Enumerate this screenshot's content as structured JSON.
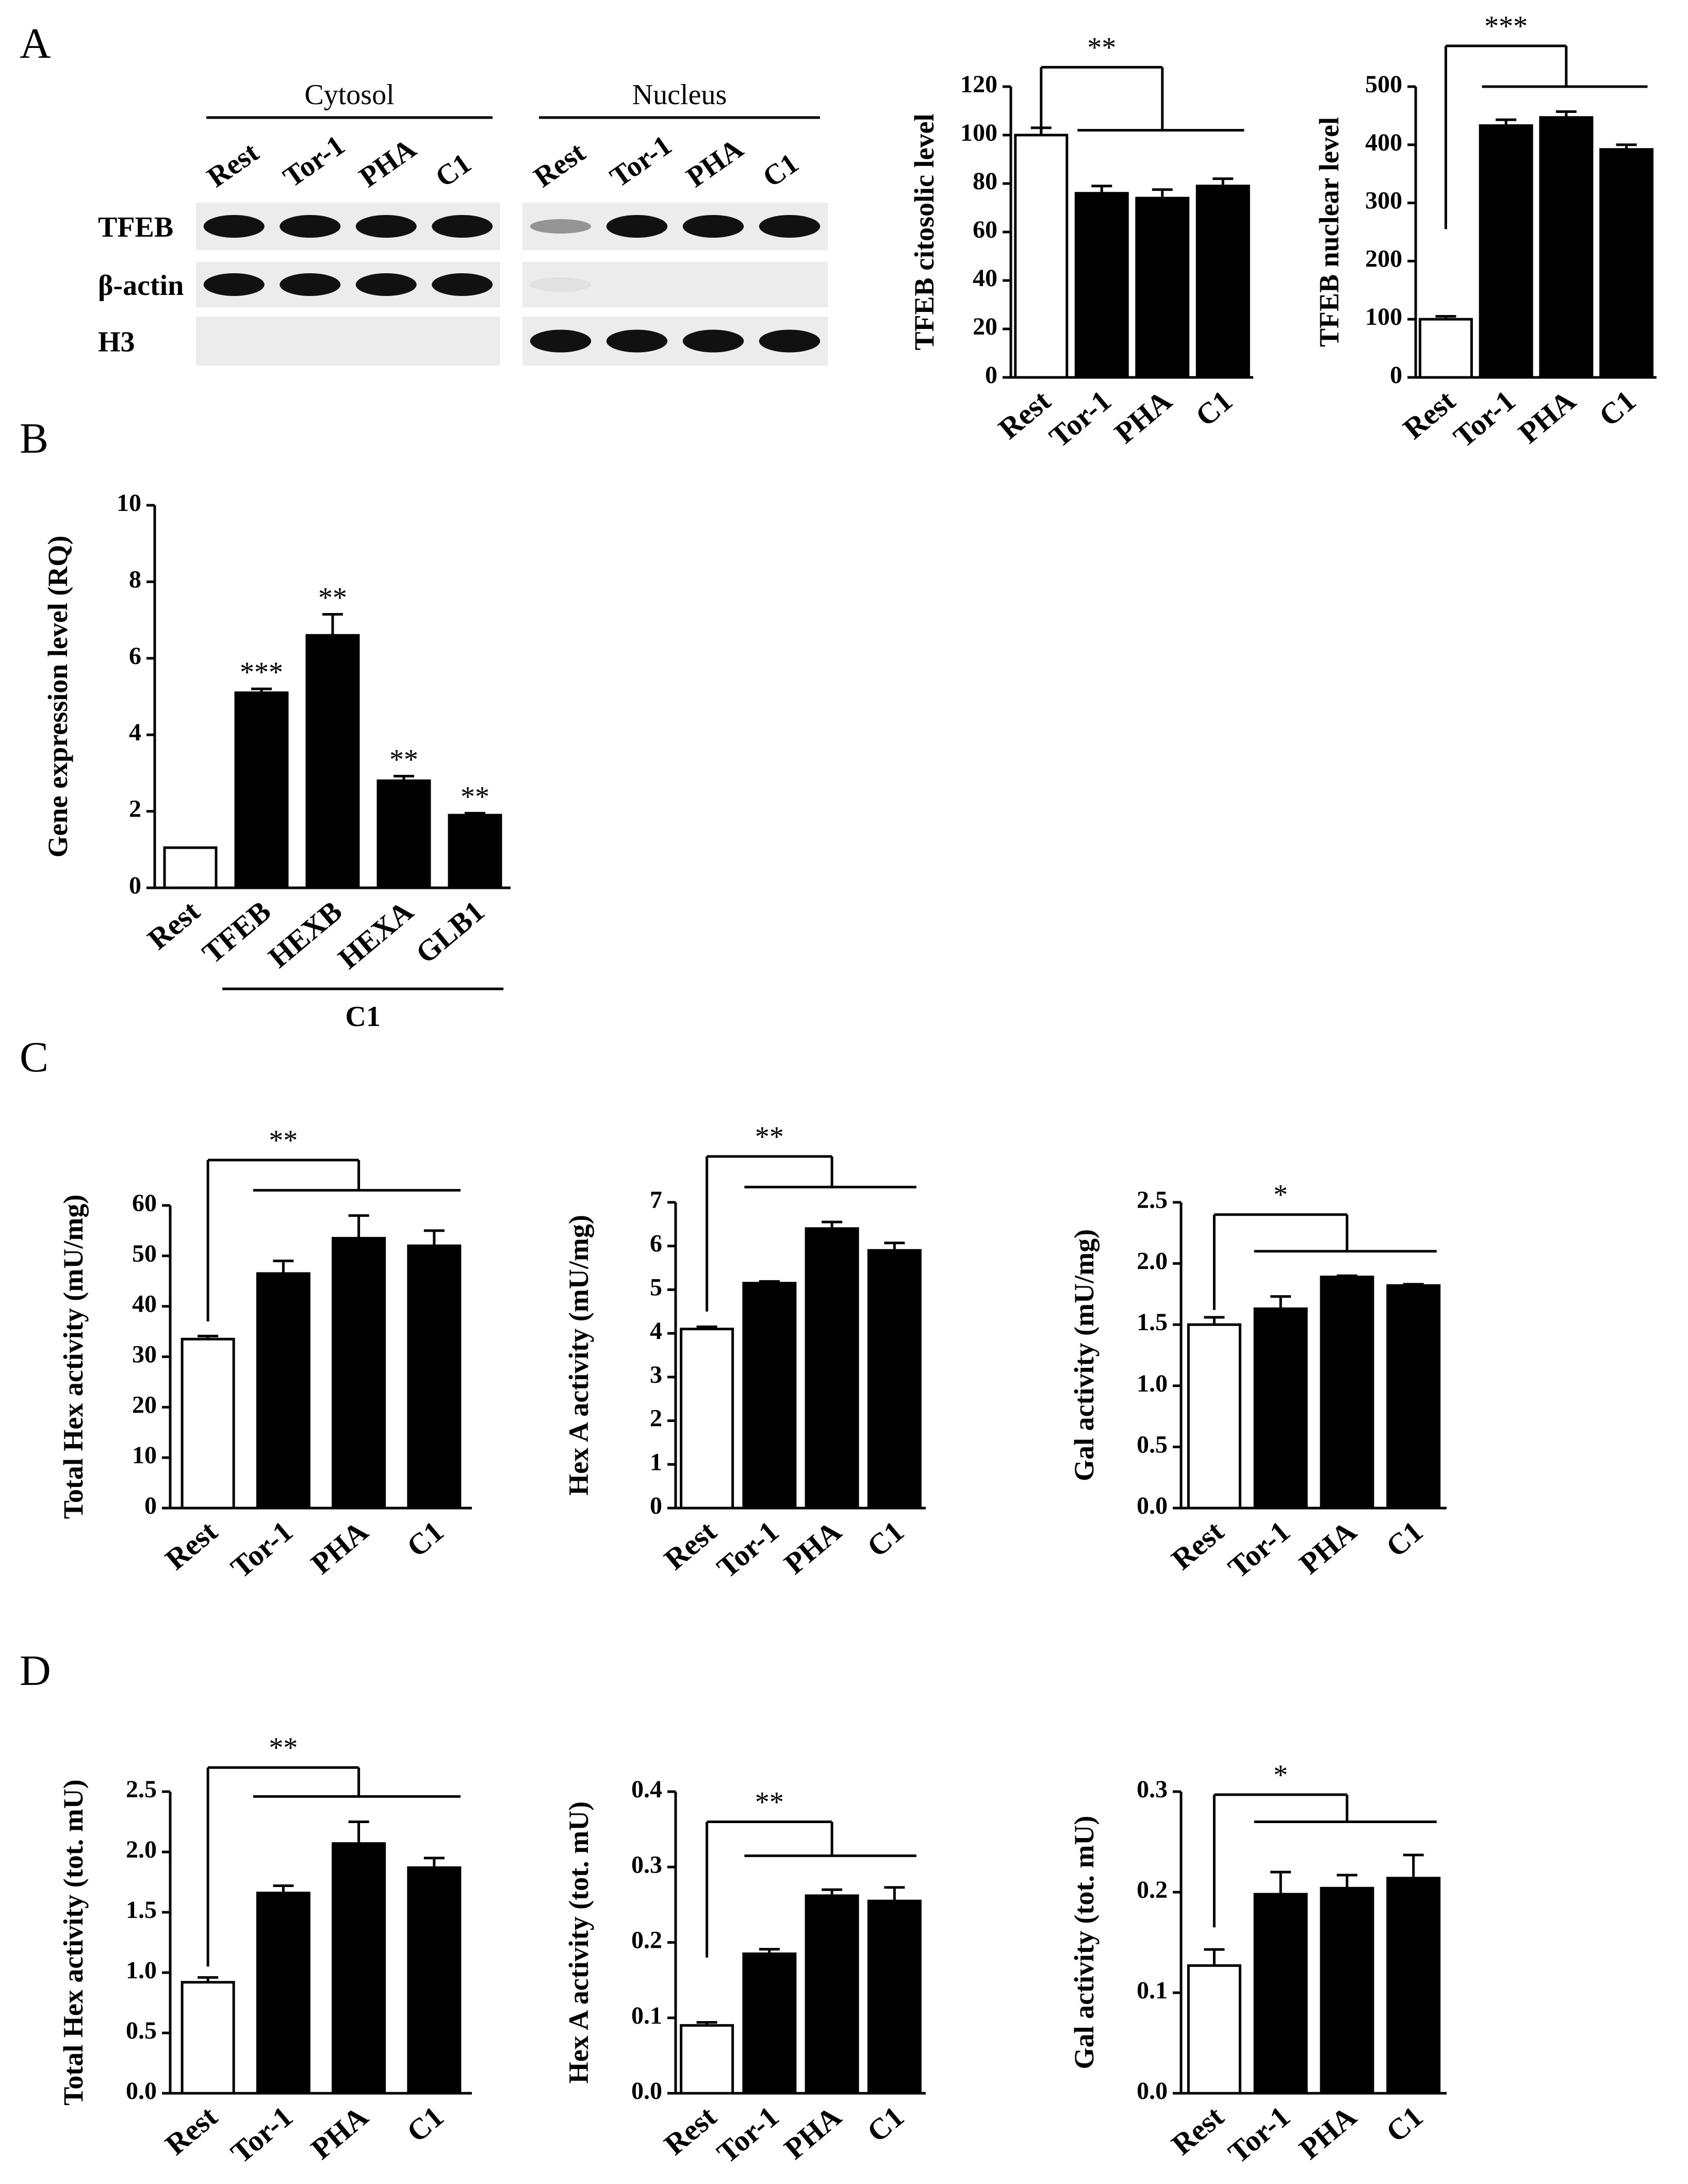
{
  "figure": {
    "panel_letters": [
      "A",
      "B",
      "C",
      "D"
    ]
  },
  "western_blot": {
    "group_labels": [
      "Cytosol",
      "Nucleus"
    ],
    "lane_labels": [
      "Rest",
      "Tor-1",
      "PHA",
      "C1"
    ],
    "row_labels": [
      "TFEB",
      "β-actin",
      "H3"
    ],
    "bands": {
      "cytosol": {
        "TFEB": [
          1,
          1,
          1,
          1
        ],
        "β-actin": [
          1,
          1,
          1,
          1
        ],
        "H3": [
          0,
          0,
          0,
          0
        ]
      },
      "nucleus": {
        "TFEB": [
          0.4,
          1,
          1,
          1
        ],
        "β-actin": [
          0.05,
          0,
          0,
          0
        ],
        "H3": [
          1,
          1,
          1,
          1
        ]
      }
    }
  },
  "chart_data": [
    {
      "id": "A1",
      "type": "bar",
      "categories": [
        "Rest",
        "Tor-1",
        "PHA",
        "C1"
      ],
      "values": [
        100,
        76,
        74,
        79
      ],
      "errors": [
        3,
        3,
        3.5,
        3
      ],
      "fills": [
        "#ffffff",
        "#000000",
        "#000000",
        "#000000"
      ],
      "ylabel": "TFEB citosolic level",
      "ylim": [
        0,
        120
      ],
      "yticks": [
        0,
        20,
        40,
        60,
        80,
        100,
        120
      ],
      "ytick_labels": [
        "0",
        "20",
        "40",
        "60",
        "80",
        "100",
        "120"
      ],
      "significance": {
        "label": "**",
        "ref": 100,
        "top": 128,
        "bar": 102
      }
    },
    {
      "id": "A2",
      "type": "bar",
      "categories": [
        "Rest",
        "Tor-1",
        "PHA",
        "C1"
      ],
      "values": [
        100,
        433,
        447,
        392
      ],
      "errors": [
        5,
        10,
        10,
        8
      ],
      "fills": [
        "#ffffff",
        "#000000",
        "#000000",
        "#000000"
      ],
      "ylabel": "TFEB nuclear level",
      "ylim": [
        0,
        500
      ],
      "yticks": [
        0,
        100,
        200,
        300,
        400,
        500
      ],
      "ytick_labels": [
        "0",
        "100",
        "200",
        "300",
        "400",
        "500"
      ],
      "significance": {
        "label": "***",
        "ref": 255,
        "top": 570,
        "bar": 500
      }
    },
    {
      "id": "B",
      "type": "bar",
      "categories": [
        "Rest",
        "TFEB",
        "HEXB",
        "HEXA",
        "GLB1"
      ],
      "values": [
        1.05,
        5.1,
        6.6,
        2.8,
        1.9
      ],
      "errors": [
        0,
        0.1,
        0.55,
        0.12,
        0.05
      ],
      "fills": [
        "#ffffff",
        "#000000",
        "#000000",
        "#000000",
        "#000000"
      ],
      "bar_stars": [
        "",
        "***",
        "**",
        "**",
        "**"
      ],
      "ylabel": "Gene expression level (RQ)",
      "ylim": [
        0,
        10
      ],
      "yticks": [
        0,
        2,
        4,
        6,
        8,
        10
      ],
      "ytick_labels": [
        "0",
        "2",
        "4",
        "6",
        "8",
        "10"
      ],
      "group_label": "C1"
    },
    {
      "id": "C1",
      "type": "bar",
      "categories": [
        "Rest",
        "Tor-1",
        "PHA",
        "C1"
      ],
      "values": [
        33.5,
        46.5,
        53.5,
        52
      ],
      "errors": [
        0.6,
        2.5,
        4.5,
        3
      ],
      "fills": [
        "#ffffff",
        "#000000",
        "#000000",
        "#000000"
      ],
      "ylabel": "Total Hex activity (mU/mg)",
      "ylim": [
        0,
        60
      ],
      "yticks": [
        0,
        10,
        20,
        30,
        40,
        50,
        60
      ],
      "ytick_labels": [
        "0",
        "10",
        "20",
        "30",
        "40",
        "50",
        "60"
      ],
      "significance": {
        "label": "**",
        "ref": 37,
        "top": 69,
        "bar": 63
      }
    },
    {
      "id": "C2",
      "type": "bar",
      "categories": [
        "Rest",
        "Tor-1",
        "PHA",
        "C1"
      ],
      "values": [
        4.1,
        5.15,
        6.4,
        5.9
      ],
      "errors": [
        0.05,
        0.04,
        0.15,
        0.17
      ],
      "fills": [
        "#ffffff",
        "#000000",
        "#000000",
        "#000000"
      ],
      "ylabel": "Hex A activity (mU/mg)",
      "ylim": [
        0,
        7
      ],
      "yticks": [
        0,
        1,
        2,
        3,
        4,
        5,
        6,
        7
      ],
      "ytick_labels": [
        "0",
        "1",
        "2",
        "3",
        "4",
        "5",
        "6",
        "7"
      ],
      "significance": {
        "label": "**",
        "ref": 4.5,
        "top": 8.05,
        "bar": 7.35
      }
    },
    {
      "id": "C3",
      "type": "bar",
      "categories": [
        "Rest",
        "Tor-1",
        "PHA",
        "C1"
      ],
      "values": [
        1.5,
        1.63,
        1.89,
        1.82
      ],
      "errors": [
        0.06,
        0.1,
        0.01,
        0.01
      ],
      "fills": [
        "#ffffff",
        "#000000",
        "#000000",
        "#000000"
      ],
      "ylabel": "Gal activity (mU/mg)",
      "ylim": [
        0,
        2.5
      ],
      "yticks": [
        0,
        0.5,
        1,
        1.5,
        2,
        2.5
      ],
      "ytick_labels": [
        "0.0",
        "0.5",
        "1.0",
        "1.5",
        "2.0",
        "2.5"
      ],
      "significance": {
        "label": "*",
        "ref": 1.62,
        "top": 2.4,
        "bar": 2.1
      }
    },
    {
      "id": "D1",
      "type": "bar",
      "categories": [
        "Rest",
        "Tor-1",
        "PHA",
        "C1"
      ],
      "values": [
        0.92,
        1.66,
        2.07,
        1.87
      ],
      "errors": [
        0.04,
        0.06,
        0.18,
        0.08
      ],
      "fills": [
        "#ffffff",
        "#000000",
        "#000000",
        "#000000"
      ],
      "ylabel": "Total Hex activity (tot. mU)",
      "ylim": [
        0,
        2.5
      ],
      "yticks": [
        0,
        0.5,
        1,
        1.5,
        2,
        2.5
      ],
      "ytick_labels": [
        "0.0",
        "0.5",
        "1.0",
        "1.5",
        "2.0",
        "2.5"
      ],
      "significance": {
        "label": "**",
        "ref": 1.05,
        "top": 2.7,
        "bar": 2.46
      }
    },
    {
      "id": "D2",
      "type": "bar",
      "categories": [
        "Rest",
        "Tor-1",
        "PHA",
        "C1"
      ],
      "values": [
        0.09,
        0.185,
        0.262,
        0.255
      ],
      "errors": [
        0.004,
        0.006,
        0.008,
        0.018
      ],
      "fills": [
        "#ffffff",
        "#000000",
        "#000000",
        "#000000"
      ],
      "ylabel": "Hex A activity (tot. mU)",
      "ylim": [
        0,
        0.4
      ],
      "yticks": [
        0,
        0.1,
        0.2,
        0.3,
        0.4
      ],
      "ytick_labels": [
        "0.0",
        "0.1",
        "0.2",
        "0.3",
        "0.4"
      ],
      "significance": {
        "label": "**",
        "ref": 0.18,
        "top": 0.36,
        "bar": 0.315
      }
    },
    {
      "id": "D3",
      "type": "bar",
      "categories": [
        "Rest",
        "Tor-1",
        "PHA",
        "C1"
      ],
      "values": [
        0.127,
        0.198,
        0.204,
        0.214
      ],
      "errors": [
        0.016,
        0.022,
        0.013,
        0.023
      ],
      "fills": [
        "#ffffff",
        "#000000",
        "#000000",
        "#000000"
      ],
      "ylabel": "Gal activity (tot. mU)",
      "ylim": [
        0,
        0.3
      ],
      "yticks": [
        0,
        0.1,
        0.2,
        0.3
      ],
      "ytick_labels": [
        "0.0",
        "0.1",
        "0.2",
        "0.3"
      ],
      "significance": {
        "label": "*",
        "ref": 0.165,
        "top": 0.297,
        "bar": 0.27
      }
    }
  ]
}
